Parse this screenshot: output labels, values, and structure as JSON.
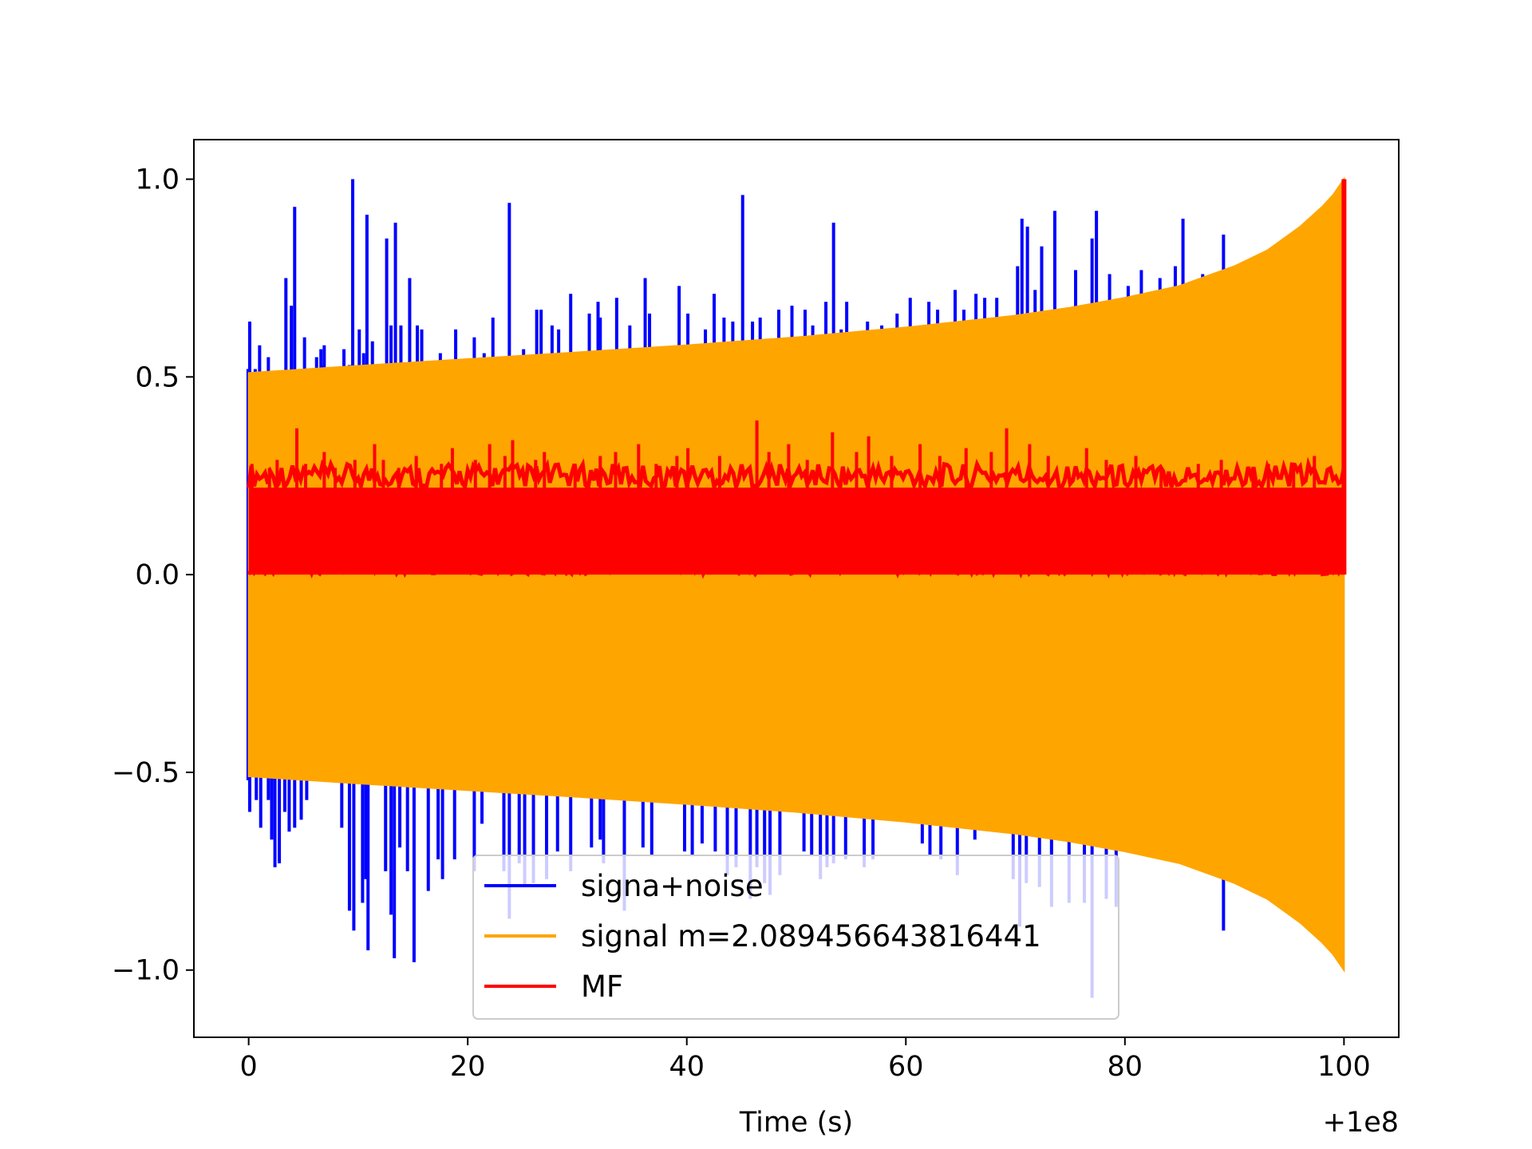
{
  "chart_data": {
    "type": "line",
    "title": "",
    "xlabel": "Time (s)",
    "ylabel": "",
    "x_offset_label": "+1e8",
    "xlim": [
      -5,
      105
    ],
    "ylim": [
      -1.17,
      1.1
    ],
    "xticks": [
      0,
      20,
      40,
      60,
      80,
      100
    ],
    "xtick_labels": [
      "0",
      "20",
      "40",
      "60",
      "80",
      "100"
    ],
    "yticks": [
      -1.0,
      -0.5,
      0.0,
      0.5,
      1.0
    ],
    "ytick_labels": [
      "−1.0",
      "−0.5",
      "0.0",
      "0.5",
      "1.0"
    ],
    "grid": false,
    "legend_position": "lower-center",
    "series": [
      {
        "name": "signa+noise",
        "color": "#0000ff",
        "upper_spikes": [
          [
            0.1,
            0.64
          ],
          [
            0.6,
            0.52
          ],
          [
            1.0,
            0.58
          ],
          [
            1.8,
            0.55
          ],
          [
            3.4,
            0.75
          ],
          [
            4.2,
            0.93
          ],
          [
            3.9,
            0.68
          ],
          [
            5.1,
            0.6
          ],
          [
            6.2,
            0.55
          ],
          [
            6.7,
            0.53
          ],
          [
            6.9,
            0.58
          ],
          [
            6.6,
            0.57
          ],
          [
            9.2,
            0.53
          ],
          [
            8.7,
            0.57
          ],
          [
            9.5,
            1.0
          ],
          [
            10.1,
            0.62
          ],
          [
            10.5,
            0.56
          ],
          [
            10.8,
            0.91
          ],
          [
            11.3,
            0.59
          ],
          [
            12.6,
            0.85
          ],
          [
            13.4,
            0.89
          ],
          [
            13.0,
            0.63
          ],
          [
            13.9,
            0.63
          ],
          [
            14.7,
            0.75
          ],
          [
            15.4,
            0.63
          ],
          [
            15.8,
            0.62
          ],
          [
            17.5,
            0.56
          ],
          [
            18.9,
            0.62
          ],
          [
            20.6,
            0.6
          ],
          [
            21.5,
            0.56
          ],
          [
            22.3,
            0.65
          ],
          [
            23.8,
            0.94
          ],
          [
            25.1,
            0.57
          ],
          [
            26.3,
            0.67
          ],
          [
            26.7,
            0.67
          ],
          [
            27.7,
            0.63
          ],
          [
            28.3,
            0.62
          ],
          [
            29.4,
            0.71
          ],
          [
            31.1,
            0.66
          ],
          [
            31.9,
            0.69
          ],
          [
            32.1,
            0.65
          ],
          [
            33.6,
            0.7
          ],
          [
            34.8,
            0.63
          ],
          [
            36.2,
            0.75
          ],
          [
            36.6,
            0.66
          ],
          [
            39.3,
            0.73
          ],
          [
            40.1,
            0.66
          ],
          [
            41.7,
            0.62
          ],
          [
            42.5,
            0.71
          ],
          [
            43.4,
            0.65
          ],
          [
            44.2,
            0.64
          ],
          [
            45.1,
            0.96
          ],
          [
            46.0,
            0.64
          ],
          [
            46.7,
            0.65
          ],
          [
            48.4,
            0.67
          ],
          [
            49.6,
            0.68
          ],
          [
            50.8,
            0.67
          ],
          [
            51.5,
            0.63
          ],
          [
            52.7,
            0.69
          ],
          [
            53.4,
            0.89
          ],
          [
            54.1,
            0.62
          ],
          [
            54.6,
            0.69
          ],
          [
            56.5,
            0.64
          ],
          [
            57.8,
            0.63
          ],
          [
            59.2,
            0.66
          ],
          [
            60.4,
            0.7
          ],
          [
            62.1,
            0.69
          ],
          [
            62.9,
            0.67
          ],
          [
            64.5,
            0.72
          ],
          [
            65.3,
            0.67
          ],
          [
            66.4,
            0.71
          ],
          [
            67.2,
            0.7
          ],
          [
            68.3,
            0.7
          ],
          [
            70.2,
            0.78
          ],
          [
            70.6,
            0.9
          ],
          [
            71.1,
            0.88
          ],
          [
            71.8,
            0.72
          ],
          [
            72.4,
            0.83
          ],
          [
            73.6,
            0.92
          ],
          [
            75.5,
            0.77
          ],
          [
            77.0,
            0.85
          ],
          [
            77.4,
            0.92
          ],
          [
            78.6,
            0.76
          ],
          [
            80.3,
            0.73
          ],
          [
            81.5,
            0.77
          ],
          [
            83.2,
            0.75
          ],
          [
            84.6,
            0.78
          ],
          [
            85.3,
            0.9
          ],
          [
            87.1,
            0.76
          ],
          [
            89.0,
            0.86
          ]
        ],
        "lower_spikes": [
          [
            0.1,
            -0.6
          ],
          [
            0.7,
            -0.57
          ],
          [
            1.1,
            -0.64
          ],
          [
            1.8,
            -0.57
          ],
          [
            2.1,
            -0.67
          ],
          [
            2.4,
            -0.74
          ],
          [
            2.8,
            -0.73
          ],
          [
            3.3,
            -0.6
          ],
          [
            3.7,
            -0.65
          ],
          [
            4.2,
            -0.64
          ],
          [
            4.8,
            -0.62
          ],
          [
            5.3,
            -0.57
          ],
          [
            8.5,
            -0.64
          ],
          [
            9.2,
            -0.85
          ],
          [
            9.6,
            -0.9
          ],
          [
            10.4,
            -0.83
          ],
          [
            10.7,
            -0.77
          ],
          [
            10.9,
            -0.95
          ],
          [
            12.5,
            -0.75
          ],
          [
            13.0,
            -0.86
          ],
          [
            13.3,
            -0.97
          ],
          [
            13.8,
            -0.69
          ],
          [
            14.5,
            -0.75
          ],
          [
            15.1,
            -0.98
          ],
          [
            16.4,
            -0.8
          ],
          [
            17.3,
            -0.72
          ],
          [
            17.7,
            -0.77
          ],
          [
            18.8,
            -0.72
          ],
          [
            20.6,
            -0.75
          ],
          [
            21.3,
            -0.63
          ],
          [
            23.3,
            -0.75
          ],
          [
            23.8,
            -0.87
          ],
          [
            24.7,
            -0.73
          ],
          [
            25.2,
            -0.79
          ],
          [
            26.0,
            -0.78
          ],
          [
            27.2,
            -0.77
          ],
          [
            28.2,
            -0.7
          ],
          [
            29.4,
            -0.75
          ],
          [
            31.3,
            -0.69
          ],
          [
            32.1,
            -0.67
          ],
          [
            32.4,
            -0.73
          ],
          [
            34.3,
            -0.85
          ],
          [
            36.0,
            -0.69
          ],
          [
            36.8,
            -0.71
          ],
          [
            39.8,
            -0.7
          ],
          [
            40.5,
            -0.71
          ],
          [
            41.4,
            -0.68
          ],
          [
            42.6,
            -0.7
          ],
          [
            43.7,
            -0.76
          ],
          [
            44.5,
            -0.74
          ],
          [
            45.8,
            -0.82
          ],
          [
            46.4,
            -0.74
          ],
          [
            47.1,
            -0.78
          ],
          [
            47.6,
            -0.81
          ],
          [
            48.5,
            -0.76
          ],
          [
            50.7,
            -0.7
          ],
          [
            51.4,
            -0.71
          ],
          [
            52.2,
            -0.77
          ],
          [
            52.8,
            -0.74
          ],
          [
            53.4,
            -0.73
          ],
          [
            54.5,
            -0.72
          ],
          [
            56.2,
            -0.74
          ],
          [
            57.0,
            -0.72
          ],
          [
            61.5,
            -0.68
          ],
          [
            62.2,
            -0.71
          ],
          [
            63.2,
            -0.72
          ],
          [
            64.7,
            -0.76
          ],
          [
            66.3,
            -0.67
          ],
          [
            69.8,
            -0.77
          ],
          [
            70.4,
            -0.89
          ],
          [
            71.0,
            -0.78
          ],
          [
            72.2,
            -0.79
          ],
          [
            73.3,
            -0.84
          ],
          [
            74.9,
            -0.83
          ],
          [
            76.3,
            -0.83
          ],
          [
            77.0,
            -1.07
          ],
          [
            78.3,
            -0.82
          ],
          [
            79.2,
            -0.84
          ],
          [
            89.0,
            -0.9
          ]
        ]
      },
      {
        "name": "signal m=2.089456643816441",
        "color": "#ffa500",
        "envelope": {
          "x": [
            0,
            10,
            20,
            30,
            40,
            50,
            60,
            70,
            75,
            80,
            85,
            90,
            93,
            96,
            98,
            99,
            100
          ],
          "upper": [
            0.51,
            0.528,
            0.545,
            0.562,
            0.58,
            0.6,
            0.625,
            0.655,
            0.675,
            0.7,
            0.73,
            0.78,
            0.82,
            0.88,
            0.93,
            0.96,
            1.0
          ],
          "lower": [
            -0.51,
            -0.528,
            -0.545,
            -0.562,
            -0.58,
            -0.6,
            -0.625,
            -0.655,
            -0.675,
            -0.7,
            -0.73,
            -0.78,
            -0.82,
            -0.88,
            -0.93,
            -0.96,
            -1.0
          ]
        }
      },
      {
        "name": "MF",
        "color": "#ff0000",
        "band": [
          0.0,
          0.22
        ],
        "spikes": [
          [
            0.3,
            0.28
          ],
          [
            1.9,
            0.27
          ],
          [
            2.6,
            0.29
          ],
          [
            4.4,
            0.37
          ],
          [
            5.2,
            0.28
          ],
          [
            6.9,
            0.31
          ],
          [
            7.9,
            0.27
          ],
          [
            9.7,
            0.29
          ],
          [
            11.5,
            0.33
          ],
          [
            12.3,
            0.29
          ],
          [
            13.7,
            0.27
          ],
          [
            15.3,
            0.3
          ],
          [
            17.6,
            0.28
          ],
          [
            18.6,
            0.32
          ],
          [
            20.7,
            0.29
          ],
          [
            22.0,
            0.33
          ],
          [
            23.4,
            0.3
          ],
          [
            24.1,
            0.34
          ],
          [
            26.2,
            0.29
          ],
          [
            27.0,
            0.31
          ],
          [
            29.8,
            0.28
          ],
          [
            32.1,
            0.3
          ],
          [
            33.5,
            0.31
          ],
          [
            35.6,
            0.33
          ],
          [
            37.2,
            0.28
          ],
          [
            39.1,
            0.3
          ],
          [
            40.1,
            0.32
          ],
          [
            43.0,
            0.3
          ],
          [
            46.4,
            0.39
          ],
          [
            47.5,
            0.31
          ],
          [
            49.3,
            0.33
          ],
          [
            51.0,
            0.29
          ],
          [
            53.3,
            0.36
          ],
          [
            55.5,
            0.31
          ],
          [
            56.6,
            0.35
          ],
          [
            58.7,
            0.3
          ],
          [
            61.3,
            0.33
          ],
          [
            63.1,
            0.3
          ],
          [
            65.5,
            0.32
          ],
          [
            67.8,
            0.31
          ],
          [
            69.2,
            0.37
          ],
          [
            71.3,
            0.33
          ],
          [
            73.0,
            0.3
          ],
          [
            76.5,
            0.32
          ],
          [
            78.3,
            0.29
          ],
          [
            81.0,
            0.3
          ],
          [
            83.3,
            0.27
          ],
          [
            86.7,
            0.28
          ],
          [
            88.8,
            0.29
          ],
          [
            91.7,
            0.26
          ],
          [
            93.1,
            0.28
          ],
          [
            95.4,
            0.27
          ],
          [
            97.3,
            0.3
          ]
        ],
        "final_peak": [
          100.0,
          1.0
        ]
      }
    ]
  }
}
